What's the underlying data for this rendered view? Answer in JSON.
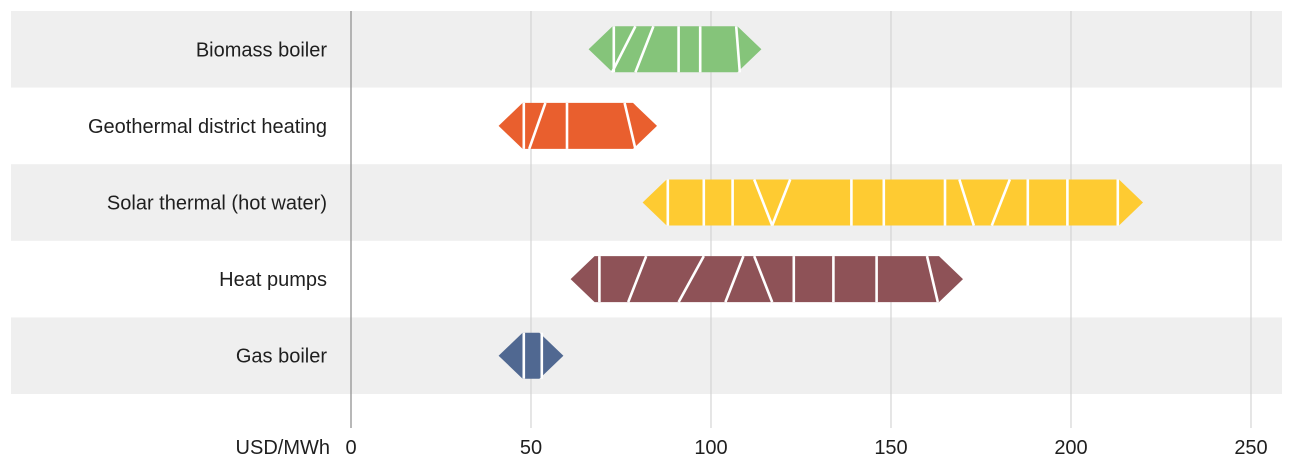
{
  "chart_data": {
    "type": "range-bar",
    "title": "",
    "xlabel": "USD/MWh",
    "ylabel": "",
    "xlim": [
      0,
      260
    ],
    "xticks": [
      0,
      50,
      100,
      150,
      200,
      250
    ],
    "grid": true,
    "legend": "none",
    "categories": [
      "Biomass boiler",
      "Geothermal district heating",
      "Solar thermal (hot water)",
      "Heat pumps",
      "Gas boiler"
    ],
    "series": [
      {
        "category": "Biomass boiler",
        "color": "#85c47a",
        "min": 66,
        "max": 114,
        "dividers": [
          [
            73,
            73
          ],
          [
            79,
            72.5
          ],
          [
            84,
            79
          ],
          [
            91,
            91
          ],
          [
            97,
            97
          ],
          [
            107,
            108
          ]
        ]
      },
      {
        "category": "Geothermal district heating",
        "color": "#e95f2e",
        "min": 41,
        "max": 85,
        "dividers": [
          [
            48,
            48
          ],
          [
            54,
            49.5
          ],
          [
            60,
            60
          ],
          [
            76,
            79
          ]
        ]
      },
      {
        "category": "Solar thermal (hot water)",
        "color": "#fecb32",
        "min": 81,
        "max": 220,
        "dividers": [
          [
            88,
            88
          ],
          [
            98,
            98
          ],
          [
            106,
            106
          ],
          [
            112,
            117
          ],
          [
            122,
            117
          ],
          [
            139,
            139
          ],
          [
            148,
            148
          ],
          [
            165,
            165
          ],
          [
            169,
            173
          ],
          [
            183,
            178
          ],
          [
            188,
            188
          ],
          [
            199,
            199
          ],
          [
            213,
            213
          ]
        ]
      },
      {
        "category": "Heat pumps",
        "color": "#8e5257",
        "min": 61,
        "max": 170,
        "dividers": [
          [
            69,
            69
          ],
          [
            82,
            77
          ],
          [
            98,
            91
          ],
          [
            109,
            104
          ],
          [
            112,
            117
          ],
          [
            123,
            123
          ],
          [
            134,
            134
          ],
          [
            146,
            146
          ],
          [
            160,
            163
          ]
        ]
      },
      {
        "category": "Gas boiler",
        "color": "#506891",
        "min": 41,
        "max": 59,
        "dividers": [
          [
            48,
            48
          ],
          [
            53,
            53
          ]
        ]
      }
    ]
  }
}
